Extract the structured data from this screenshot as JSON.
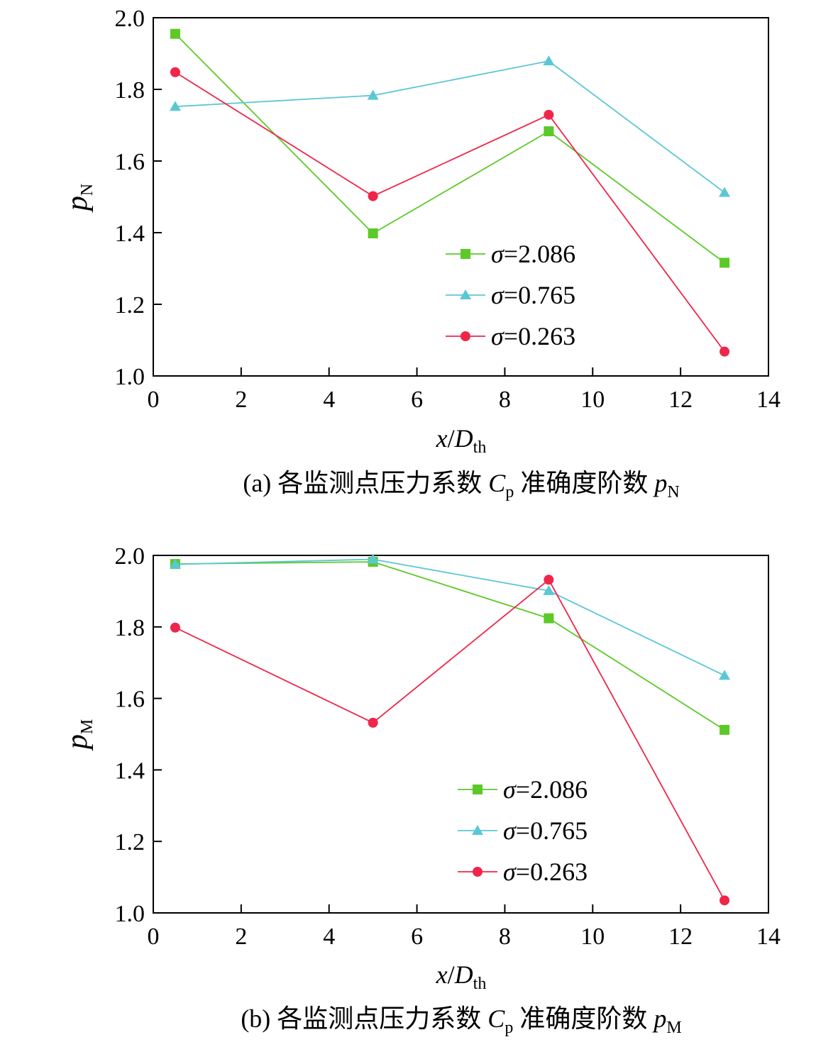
{
  "chart_data": [
    {
      "type": "line",
      "caption": {
        "prefix": "(a) 各监测点压力系数 ",
        "symbol": "C",
        "symbol_sub": "p",
        "middle": " 准确度阶数 ",
        "var": "p",
        "var_sub": "N"
      },
      "xlabel": {
        "var": "x",
        "slash": "/",
        "sym": "D",
        "sub": "th"
      },
      "ylabel": {
        "var": "p",
        "sub": "N"
      },
      "xlim": [
        0,
        14
      ],
      "ylim": [
        1.0,
        2.0
      ],
      "xticks": [
        "0",
        "2",
        "4",
        "6",
        "8",
        "10",
        "12",
        "14"
      ],
      "yticks": [
        "1.0",
        "1.2",
        "1.4",
        "1.6",
        "1.8",
        "2.0"
      ],
      "x": [
        0.5,
        5,
        9,
        13
      ],
      "series": [
        {
          "name_symbol": "σ",
          "name_value": "=2.086",
          "marker": "square",
          "color": "#5cc928",
          "values": [
            1.955,
            1.398,
            1.683,
            1.316
          ]
        },
        {
          "name_symbol": "σ",
          "name_value": "=0.765",
          "marker": "triangle",
          "color": "#5bc7d4",
          "values": [
            1.752,
            1.783,
            1.879,
            1.512
          ]
        },
        {
          "name_symbol": "σ",
          "name_value": "=0.263",
          "marker": "circle",
          "color": "#f0254a",
          "values": [
            1.848,
            1.502,
            1.729,
            1.068
          ]
        }
      ]
    },
    {
      "type": "line",
      "caption": {
        "prefix": "(b) 各监测点压力系数 ",
        "symbol": "C",
        "symbol_sub": "p",
        "middle": " 准确度阶数 ",
        "var": "p",
        "var_sub": "M"
      },
      "xlabel": {
        "var": "x",
        "slash": "/",
        "sym": "D",
        "sub": "th"
      },
      "ylabel": {
        "var": "p",
        "sub": "M"
      },
      "xlim": [
        0,
        14
      ],
      "ylim": [
        1.0,
        2.0
      ],
      "xticks": [
        "0",
        "2",
        "4",
        "6",
        "8",
        "10",
        "12",
        "14"
      ],
      "yticks": [
        "1.0",
        "1.2",
        "1.4",
        "1.6",
        "1.8",
        "2.0"
      ],
      "x": [
        0.5,
        5,
        9,
        13
      ],
      "series": [
        {
          "name_symbol": "σ",
          "name_value": "=2.086",
          "marker": "square",
          "color": "#5cc928",
          "values": [
            1.976,
            1.982,
            1.824,
            1.512
          ]
        },
        {
          "name_symbol": "σ",
          "name_value": "=0.765",
          "marker": "triangle",
          "color": "#5bc7d4",
          "values": [
            1.975,
            1.989,
            1.901,
            1.664
          ]
        },
        {
          "name_symbol": "σ",
          "name_value": "=0.263",
          "marker": "circle",
          "color": "#f0254a",
          "values": [
            1.798,
            1.532,
            1.932,
            1.035
          ]
        }
      ]
    }
  ]
}
